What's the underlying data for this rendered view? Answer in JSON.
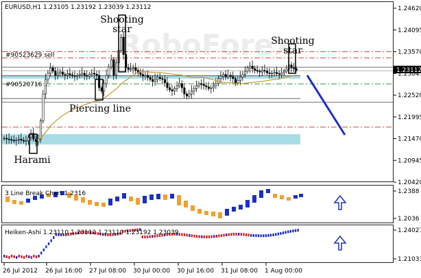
{
  "chart_data": [
    {
      "type": "candlestick",
      "title": "EURUSD,H1  1.23105 1.23192 1.23039 1.23112",
      "watermark": "RoboForex",
      "y_axis_ticks": [
        "1.24620",
        "1.24095",
        "1.23570",
        "1.23045",
        "1.22520",
        "1.21995",
        "1.21470",
        "1.20945",
        "1.20420"
      ],
      "y_axis_values": [
        1.2462,
        1.24095,
        1.2357,
        1.23045,
        1.2252,
        1.21995,
        1.2147,
        1.20945,
        1.2042
      ],
      "current_price_label": "1.23112",
      "current_price": 1.23112,
      "order_labels": [
        "#90523629 sell",
        "#90520716 ..."
      ],
      "horizontal_levels": [
        {
          "price": 1.2357,
          "style": "dash-dot",
          "color": "#d04a4a"
        },
        {
          "price": 1.2342,
          "style": "dash-dot",
          "color": "#d04a4a"
        },
        {
          "price": 1.23195,
          "style": "solid",
          "color": "#707070"
        },
        {
          "price": 1.2311,
          "style": "solid",
          "color": "#b0b0b0"
        },
        {
          "price": 1.2299,
          "style": "solid",
          "color": "#606060"
        },
        {
          "price": 1.2279,
          "style": "dash-dot",
          "color": "#3a9a3a"
        },
        {
          "price": 1.2244,
          "style": "solid",
          "color": "#606060"
        },
        {
          "price": 1.2235,
          "style": "solid",
          "color": "#707070"
        },
        {
          "price": 1.2175,
          "style": "dash-dot",
          "color": "#d04a4a"
        }
      ],
      "zones": [
        {
          "from": 1.23,
          "to": 1.2292,
          "color": "#a8dde8"
        },
        {
          "from": 1.2158,
          "to": 1.2133,
          "color": "#a8dde8"
        }
      ],
      "patterns": [
        "Shooting star",
        "Shooting star",
        "Piercing line",
        "Harami"
      ],
      "forecast_arrow": {
        "from_price": 1.2316,
        "to_price": 1.2152,
        "direction": "down",
        "color": "#1a2fc8"
      },
      "ma_color": "#c8962c",
      "bull_color": "#1a2fc8",
      "bear_color": "#1a1a1a"
    },
    {
      "type": "line-break",
      "title": "3 Line Break Chart 1.2316",
      "y_axis_ticks": [
        "1.2388",
        "1.2036"
      ],
      "ylim": [
        1.2036,
        1.2388
      ],
      "up_color": "#1a2fc8",
      "down_color": "#f0a030",
      "signal": "up-arrow"
    },
    {
      "type": "heiken-ashi",
      "title": "Heiken-Ashi 1.23110 1.23112 1.23110 1.23192 1.23039",
      "y_axis_ticks": [
        "1.24027",
        "1.21033"
      ],
      "ylim": [
        1.21033,
        1.24027
      ],
      "up_color": "#1a2fc8",
      "down_color": "#d02020",
      "signal": "up-arrow"
    }
  ],
  "x_axis_labels": [
    "26 Jul 2012",
    "26 Jul 16:00",
    "27 Jul 08:00",
    "30 Jul 00:00",
    "30 Jul 16:00",
    "31 Jul 08:00",
    "1 Aug 00:00"
  ]
}
